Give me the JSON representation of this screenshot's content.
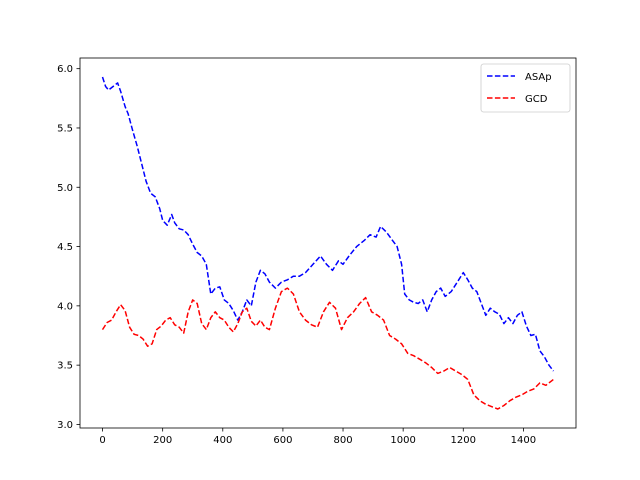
{
  "chart_data": {
    "type": "line",
    "title": "",
    "xlabel": "",
    "ylabel": "",
    "xlim": [
      -75,
      1575
    ],
    "ylim": [
      2.97,
      6.09
    ],
    "xticks": [
      0,
      200,
      400,
      600,
      800,
      1000,
      1200,
      1400
    ],
    "yticks": [
      3.0,
      3.5,
      4.0,
      4.5,
      5.0,
      5.5,
      6.0
    ],
    "xtick_labels": [
      "0",
      "200",
      "400",
      "600",
      "800",
      "1000",
      "1200",
      "1400"
    ],
    "ytick_labels": [
      "3.0",
      "3.5",
      "4.0",
      "4.5",
      "5.0",
      "5.5",
      "6.0"
    ],
    "grid": false,
    "legend_position": "top-right",
    "series": [
      {
        "name": "ASAp",
        "color": "#0000ff",
        "style": "dashed",
        "x": [
          0,
          10,
          20,
          40,
          50,
          60,
          75,
          85,
          100,
          115,
          130,
          145,
          160,
          175,
          190,
          200,
          215,
          230,
          240,
          255,
          270,
          285,
          300,
          315,
          330,
          345,
          360,
          375,
          390,
          405,
          420,
          435,
          450,
          465,
          480,
          495,
          510,
          525,
          540,
          555,
          575,
          595,
          615,
          635,
          655,
          675,
          700,
          725,
          745,
          765,
          785,
          800,
          820,
          845,
          870,
          890,
          910,
          925,
          945,
          965,
          980,
          995,
          1005,
          1020,
          1035,
          1050,
          1065,
          1080,
          1095,
          1110,
          1125,
          1140,
          1160,
          1180,
          1200,
          1215,
          1230,
          1245,
          1260,
          1275,
          1290,
          1305,
          1320,
          1335,
          1350,
          1365,
          1380,
          1395,
          1410,
          1425,
          1440,
          1455,
          1470,
          1485,
          1500
        ],
        "y": [
          5.93,
          5.85,
          5.82,
          5.86,
          5.88,
          5.81,
          5.68,
          5.62,
          5.48,
          5.35,
          5.2,
          5.05,
          4.95,
          4.92,
          4.82,
          4.72,
          4.68,
          4.77,
          4.7,
          4.65,
          4.64,
          4.6,
          4.52,
          4.45,
          4.42,
          4.35,
          4.1,
          4.15,
          4.16,
          4.05,
          4.02,
          3.96,
          3.88,
          3.95,
          4.05,
          4.0,
          4.2,
          4.3,
          4.27,
          4.2,
          4.15,
          4.2,
          4.22,
          4.25,
          4.25,
          4.28,
          4.35,
          4.42,
          4.35,
          4.3,
          4.38,
          4.35,
          4.42,
          4.5,
          4.55,
          4.6,
          4.58,
          4.67,
          4.62,
          4.55,
          4.5,
          4.35,
          4.1,
          4.05,
          4.03,
          4.02,
          4.05,
          3.95,
          4.05,
          4.12,
          4.15,
          4.08,
          4.12,
          4.2,
          4.28,
          4.22,
          4.15,
          4.12,
          4.02,
          3.92,
          3.98,
          3.95,
          3.93,
          3.85,
          3.9,
          3.85,
          3.92,
          3.95,
          3.83,
          3.75,
          3.76,
          3.62,
          3.57,
          3.5,
          3.45
        ]
      },
      {
        "name": "GCD",
        "color": "#ff0000",
        "style": "dashed",
        "x": [
          0,
          15,
          30,
          45,
          60,
          75,
          90,
          105,
          120,
          135,
          150,
          165,
          180,
          195,
          210,
          225,
          240,
          255,
          270,
          285,
          300,
          315,
          330,
          345,
          360,
          375,
          390,
          405,
          420,
          435,
          450,
          465,
          480,
          495,
          510,
          525,
          540,
          555,
          575,
          595,
          615,
          635,
          655,
          675,
          695,
          715,
          735,
          755,
          775,
          795,
          815,
          835,
          855,
          875,
          895,
          915,
          935,
          955,
          975,
          995,
          1015,
          1035,
          1055,
          1075,
          1095,
          1115,
          1135,
          1155,
          1175,
          1195,
          1215,
          1235,
          1255,
          1275,
          1295,
          1315,
          1335,
          1355,
          1375,
          1395,
          1415,
          1435,
          1455,
          1475,
          1500
        ],
        "y": [
          3.8,
          3.86,
          3.88,
          3.95,
          4.01,
          3.96,
          3.82,
          3.76,
          3.75,
          3.72,
          3.66,
          3.68,
          3.8,
          3.83,
          3.88,
          3.9,
          3.84,
          3.82,
          3.77,
          3.95,
          4.05,
          4.02,
          3.85,
          3.8,
          3.9,
          3.95,
          3.9,
          3.88,
          3.82,
          3.78,
          3.85,
          3.95,
          3.98,
          3.87,
          3.83,
          3.88,
          3.82,
          3.8,
          3.98,
          4.12,
          4.15,
          4.1,
          3.95,
          3.88,
          3.84,
          3.82,
          3.95,
          4.03,
          3.98,
          3.8,
          3.9,
          3.95,
          4.02,
          4.07,
          3.95,
          3.92,
          3.88,
          3.75,
          3.72,
          3.68,
          3.6,
          3.58,
          3.55,
          3.52,
          3.48,
          3.43,
          3.45,
          3.48,
          3.45,
          3.42,
          3.38,
          3.25,
          3.2,
          3.17,
          3.15,
          3.13,
          3.16,
          3.2,
          3.23,
          3.25,
          3.28,
          3.3,
          3.35,
          3.33,
          3.38
        ]
      }
    ]
  }
}
